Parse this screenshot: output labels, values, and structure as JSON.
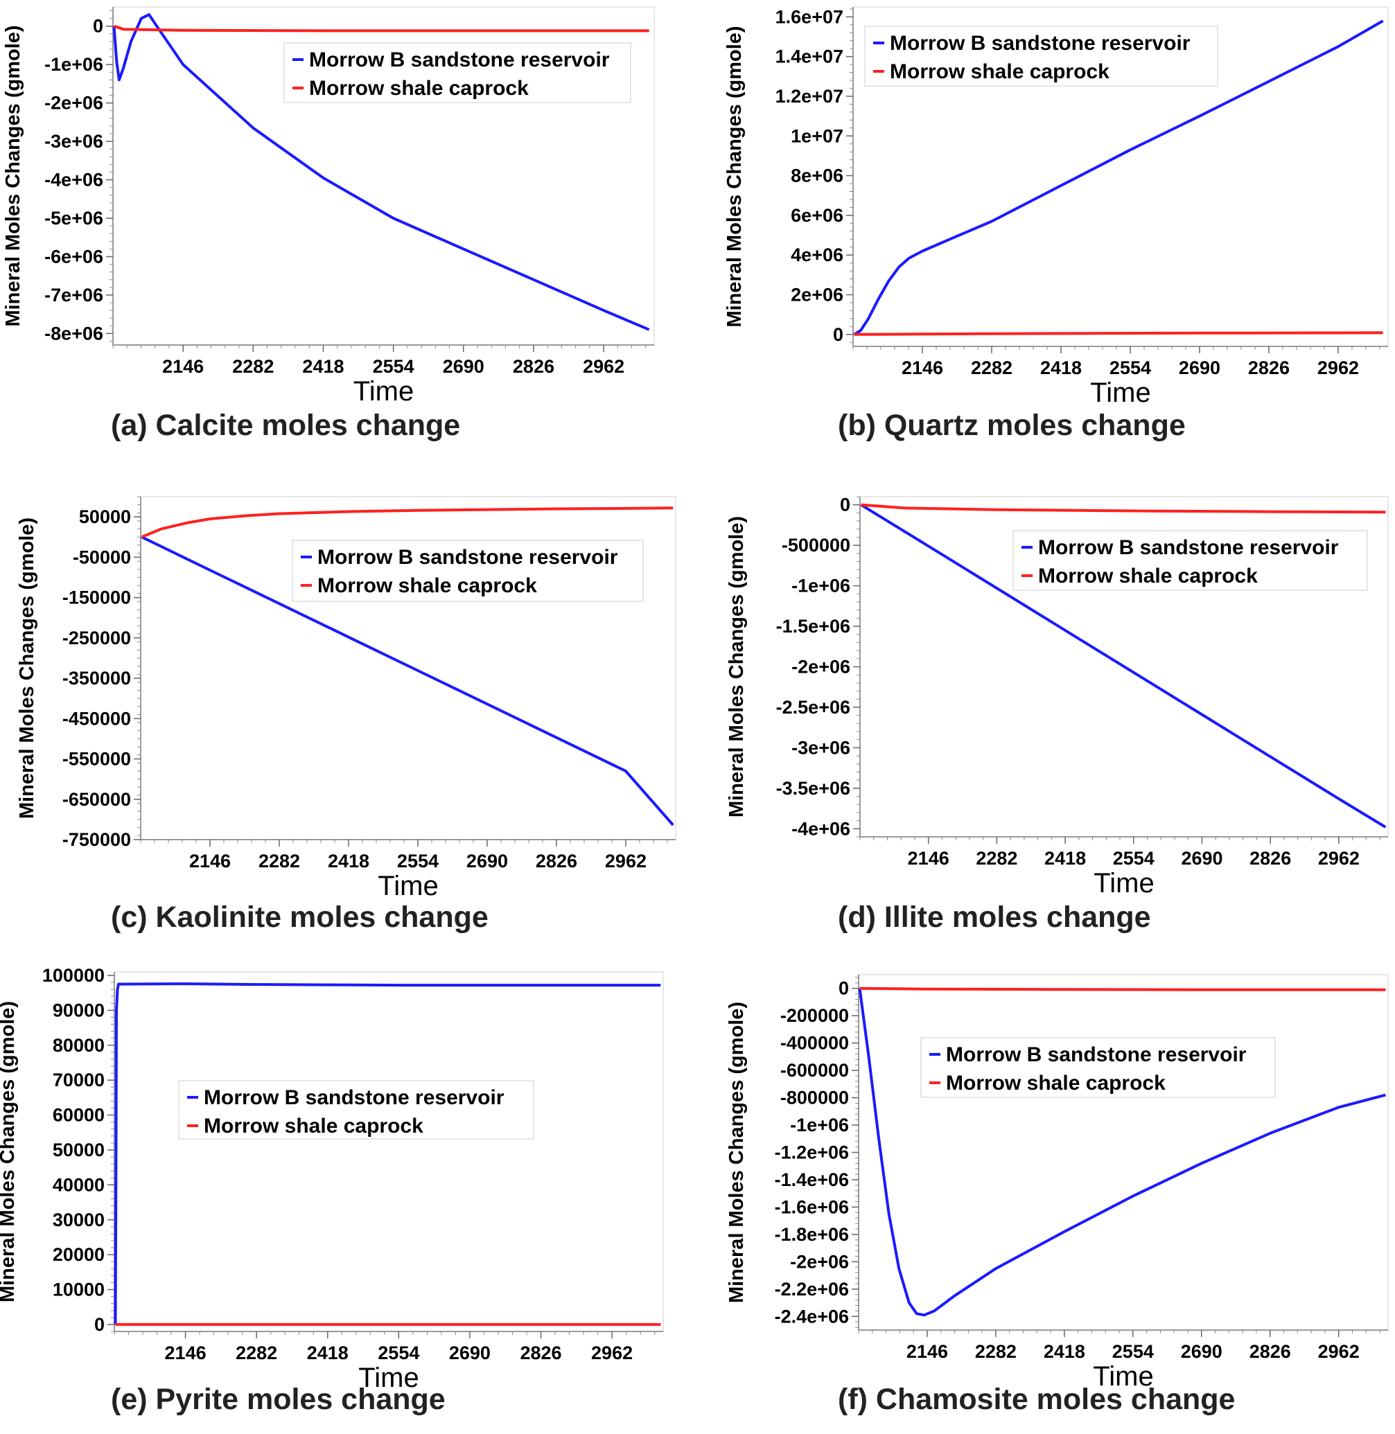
{
  "legend": {
    "reservoir": "Morrow B sandstone reservoir",
    "caprock": "Morrow shale caprock",
    "reservoir_color": "#1a1aff",
    "caprock_color": "#ff2020"
  },
  "chart_data": [
    {
      "id": "a",
      "type": "line",
      "caption": "(a) Calcite moles change",
      "xlabel": "Time",
      "ylabel": "Mineral Moles Changes (gmole)",
      "xlim": [
        2010,
        3060
      ],
      "ylim": [
        -8300000,
        500000
      ],
      "xticks": [
        2146,
        2282,
        2418,
        2554,
        2690,
        2826,
        2962
      ],
      "xtick_labels": [
        "2146",
        "2282",
        "2418",
        "2554",
        "2690",
        "2826",
        "2962"
      ],
      "yticks": [
        0,
        -1000000,
        -2000000,
        -3000000,
        -4000000,
        -5000000,
        -6000000,
        -7000000,
        -8000000
      ],
      "ytick_labels": [
        "0",
        "-1e+06",
        "-2e+06",
        "-3e+06",
        "-4e+06",
        "-5e+06",
        "-6e+06",
        "-7e+06",
        "-8e+06"
      ],
      "legend_position": "top-right",
      "series": [
        {
          "name": "Morrow B sandstone reservoir",
          "x": [
            2012,
            2017,
            2022,
            2030,
            2045,
            2065,
            2080,
            2095,
            2146,
            2282,
            2418,
            2554,
            2690,
            2826,
            2962,
            3050
          ],
          "values": [
            0,
            -900000,
            -1400000,
            -1100000,
            -400000,
            200000,
            300000,
            0,
            -1000000,
            -2650000,
            -3950000,
            -5000000,
            -5800000,
            -6600000,
            -7400000,
            -7900000
          ]
        },
        {
          "name": "Morrow shale caprock",
          "x": [
            2012,
            2030,
            2146,
            2418,
            2690,
            2962,
            3050
          ],
          "values": [
            0,
            -80000,
            -110000,
            -120000,
            -120000,
            -120000,
            -120000
          ]
        }
      ]
    },
    {
      "id": "b",
      "type": "line",
      "caption": "(b) Quartz moles change",
      "xlabel": "Time",
      "ylabel": "Mineral Moles Changes (gmole)",
      "xlim": [
        2010,
        3060
      ],
      "ylim": [
        -600000,
        16500000
      ],
      "xticks": [
        2146,
        2282,
        2418,
        2554,
        2690,
        2826,
        2962
      ],
      "xtick_labels": [
        "2146",
        "2282",
        "2418",
        "2554",
        "2690",
        "2826",
        "2962"
      ],
      "yticks": [
        0,
        2000000,
        4000000,
        6000000,
        8000000,
        10000000,
        12000000,
        14000000,
        16000000
      ],
      "ytick_labels": [
        "0",
        "2e+06",
        "4e+06",
        "6e+06",
        "8e+06",
        "1e+07",
        "1.2e+07",
        "1.4e+07",
        "1.6e+07"
      ],
      "legend_position": "top-left",
      "series": [
        {
          "name": "Morrow B sandstone reservoir",
          "x": [
            2012,
            2025,
            2040,
            2060,
            2080,
            2100,
            2120,
            2146,
            2200,
            2282,
            2418,
            2554,
            2690,
            2826,
            2962,
            3050
          ],
          "values": [
            0,
            200000,
            800000,
            1800000,
            2700000,
            3400000,
            3850000,
            4200000,
            4800000,
            5700000,
            7500000,
            9300000,
            11000000,
            12750000,
            14500000,
            15800000
          ]
        },
        {
          "name": "Morrow shale caprock",
          "x": [
            2012,
            2146,
            2418,
            2690,
            2962,
            3050
          ],
          "values": [
            0,
            20000,
            50000,
            70000,
            80000,
            90000
          ]
        }
      ]
    },
    {
      "id": "c",
      "type": "line",
      "caption": "(c) Kaolinite moles change",
      "xlabel": "Time",
      "ylabel": "Mineral Moles Changes (gmole)",
      "xlim": [
        2010,
        3060
      ],
      "ylim": [
        -750000,
        100000
      ],
      "xticks": [
        2146,
        2282,
        2418,
        2554,
        2690,
        2826,
        2962
      ],
      "xtick_labels": [
        "2146",
        "2282",
        "2418",
        "2554",
        "2690",
        "2826",
        "2962"
      ],
      "yticks": [
        50000,
        -50000,
        -150000,
        -250000,
        -350000,
        -450000,
        -550000,
        -650000,
        -750000
      ],
      "ytick_labels": [
        "50000",
        "-50000",
        "-150000",
        "-250000",
        "-350000",
        "-450000",
        "-550000",
        "-650000",
        "-750000"
      ],
      "legend_position": "top-right",
      "series": [
        {
          "name": "Morrow B sandstone reservoir",
          "x": [
            2012,
            2146,
            2282,
            2418,
            2554,
            2690,
            2826,
            2962,
            3055
          ],
          "values": [
            0,
            -82000,
            -165000,
            -248000,
            -331000,
            -414000,
            -497000,
            -580000,
            -714000
          ]
        },
        {
          "name": "Morrow shale caprock",
          "x": [
            2012,
            2050,
            2100,
            2146,
            2218,
            2282,
            2418,
            2554,
            2690,
            2826,
            2962,
            3055
          ],
          "values": [
            0,
            20000,
            35000,
            45000,
            53000,
            58000,
            63000,
            66000,
            68000,
            70000,
            71000,
            72000
          ]
        }
      ]
    },
    {
      "id": "d",
      "type": "line",
      "caption": "(d) Illite moles change",
      "xlabel": "Time",
      "ylabel": "Mineral Moles Changes (gmole)",
      "xlim": [
        2010,
        3060
      ],
      "ylim": [
        -4100000,
        100000
      ],
      "xticks": [
        2146,
        2282,
        2418,
        2554,
        2690,
        2826,
        2962
      ],
      "xtick_labels": [
        "2146",
        "2282",
        "2418",
        "2554",
        "2690",
        "2826",
        "2962"
      ],
      "yticks": [
        0,
        -500000,
        -1000000,
        -1500000,
        -2000000,
        -2500000,
        -3000000,
        -3500000,
        -4000000
      ],
      "ytick_labels": [
        "0",
        "-500000",
        "-1e+06",
        "-1.5e+06",
        "-2e+06",
        "-2.5e+06",
        "-3e+06",
        "-3.5e+06",
        "-4e+06"
      ],
      "legend_position": "top-right",
      "series": [
        {
          "name": "Morrow B sandstone reservoir",
          "x": [
            2012,
            2146,
            2282,
            2418,
            2554,
            2690,
            2826,
            2962,
            3055
          ],
          "values": [
            0,
            -510000,
            -1030000,
            -1550000,
            -2070000,
            -2590000,
            -3110000,
            -3630000,
            -3980000
          ]
        },
        {
          "name": "Morrow shale caprock",
          "x": [
            2012,
            2100,
            2282,
            2554,
            2826,
            3055
          ],
          "values": [
            0,
            -40000,
            -60000,
            -75000,
            -85000,
            -90000
          ]
        }
      ]
    },
    {
      "id": "e",
      "type": "line",
      "caption": "(e) Pyrite moles change",
      "xlabel": "Time",
      "ylabel": "Mineral Moles Changes (gmole)",
      "xlim": [
        2010,
        3060
      ],
      "ylim": [
        -2000,
        101000
      ],
      "xticks": [
        2146,
        2282,
        2418,
        2554,
        2690,
        2826,
        2962
      ],
      "xtick_labels": [
        "2146",
        "2282",
        "2418",
        "2554",
        "2690",
        "2826",
        "2962"
      ],
      "yticks": [
        0,
        10000,
        20000,
        30000,
        40000,
        50000,
        60000,
        70000,
        80000,
        90000,
        100000
      ],
      "ytick_labels": [
        "0",
        "10000",
        "20000",
        "30000",
        "40000",
        "50000",
        "60000",
        "70000",
        "80000",
        "90000",
        "100000"
      ],
      "legend_position": "center-left",
      "series": [
        {
          "name": "Morrow B sandstone reservoir",
          "x": [
            2012,
            2013,
            2014,
            2016,
            2018,
            2146,
            2282,
            2418,
            2554,
            2690,
            2826,
            2962,
            3055
          ],
          "values": [
            0,
            40000,
            90000,
            96000,
            97500,
            97600,
            97400,
            97300,
            97200,
            97200,
            97200,
            97200,
            97200
          ]
        },
        {
          "name": "Morrow shale caprock",
          "x": [
            2012,
            2146,
            2418,
            2690,
            2962,
            3055
          ],
          "values": [
            0,
            0,
            0,
            0,
            0,
            0
          ]
        }
      ]
    },
    {
      "id": "f",
      "type": "line",
      "caption": "(f) Chamosite moles change",
      "xlabel": "Time",
      "ylabel": "Mineral Moles Changes (gmole)",
      "xlim": [
        2010,
        3060
      ],
      "ylim": [
        -2500000,
        100000
      ],
      "xticks": [
        2146,
        2282,
        2418,
        2554,
        2690,
        2826,
        2962
      ],
      "xtick_labels": [
        "2146",
        "2282",
        "2418",
        "2554",
        "2690",
        "2826",
        "2962"
      ],
      "yticks": [
        0,
        -200000,
        -400000,
        -600000,
        -800000,
        -1000000,
        -1200000,
        -1400000,
        -1600000,
        -1800000,
        -2000000,
        -2200000,
        -2400000
      ],
      "ytick_labels": [
        "0",
        "-200000",
        "-400000",
        "-600000",
        "-800000",
        "-1e+06",
        "-1.2e+06",
        "-1.4e+06",
        "-1.6e+06",
        "-1.8e+06",
        "-2e+06",
        "-2.2e+06",
        "-2.4e+06"
      ],
      "legend_position": "top-center",
      "series": [
        {
          "name": "Morrow B sandstone reservoir",
          "x": [
            2012,
            2030,
            2050,
            2070,
            2090,
            2110,
            2125,
            2140,
            2160,
            2200,
            2282,
            2418,
            2554,
            2690,
            2826,
            2962,
            3055
          ],
          "values": [
            0,
            -500000,
            -1100000,
            -1650000,
            -2050000,
            -2300000,
            -2380000,
            -2390000,
            -2360000,
            -2250000,
            -2050000,
            -1780000,
            -1520000,
            -1280000,
            -1060000,
            -870000,
            -780000
          ]
        },
        {
          "name": "Morrow shale caprock",
          "x": [
            2012,
            2146,
            2418,
            2690,
            2962,
            3055
          ],
          "values": [
            0,
            -5000,
            -8000,
            -10000,
            -10000,
            -10000
          ]
        }
      ]
    }
  ]
}
